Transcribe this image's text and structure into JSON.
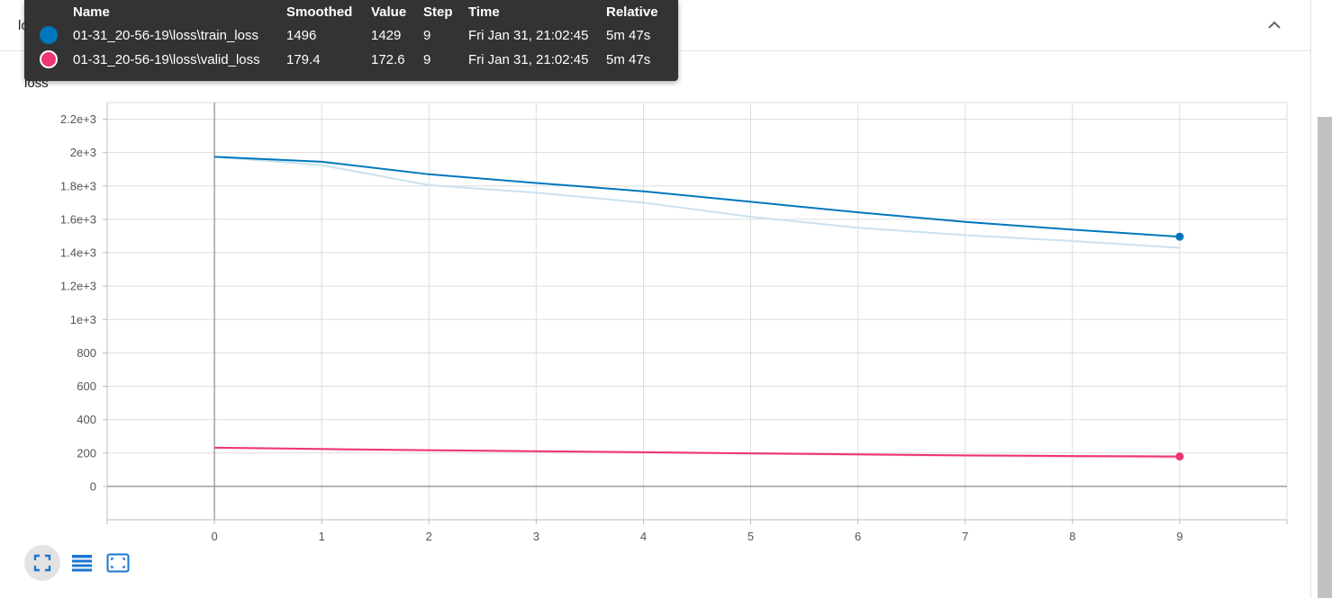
{
  "card": {
    "title": "loss",
    "collapse_icon": "chevron-up-icon"
  },
  "chart_data": {
    "type": "line",
    "title": "loss",
    "xlabel": "",
    "ylabel": "",
    "xlim": [
      -1,
      10
    ],
    "ylim": [
      -200,
      2300
    ],
    "x_ticks": [
      0,
      1,
      2,
      3,
      4,
      5,
      6,
      7,
      8,
      9
    ],
    "y_ticks": [
      {
        "value": 0,
        "label": "0"
      },
      {
        "value": 200,
        "label": "200"
      },
      {
        "value": 400,
        "label": "400"
      },
      {
        "value": 600,
        "label": "600"
      },
      {
        "value": 800,
        "label": "800"
      },
      {
        "value": 1000,
        "label": "1e+3"
      },
      {
        "value": 1200,
        "label": "1.2e+3"
      },
      {
        "value": 1400,
        "label": "1.4e+3"
      },
      {
        "value": 1600,
        "label": "1.6e+3"
      },
      {
        "value": 1800,
        "label": "1.8e+3"
      },
      {
        "value": 2000,
        "label": "2e+3"
      },
      {
        "value": 2200,
        "label": "2.2e+3"
      }
    ],
    "grid": true,
    "x": [
      0,
      1,
      2,
      3,
      4,
      5,
      6,
      7,
      8,
      9
    ],
    "series": [
      {
        "name": "01-31_20-56-19\\loss\\train_loss",
        "color": "#0077bb",
        "raw_color": "#c9e2ef",
        "raw_values": [
          1975,
          1925,
          1805,
          1760,
          1700,
          1615,
          1550,
          1505,
          1470,
          1429
        ],
        "smoothed_values": [
          1975,
          1945,
          1870,
          1818,
          1768,
          1705,
          1642,
          1585,
          1538,
          1496
        ]
      },
      {
        "name": "01-31_20-56-19\\loss\\valid_loss",
        "color": "#ee3377",
        "raw_color": "#f8c9da",
        "raw_values": [
          232,
          222,
          215,
          208,
          202,
          196,
          189,
          183,
          178,
          172.6
        ],
        "smoothed_values": [
          232,
          224,
          217,
          211,
          205,
          198,
          192,
          186,
          182,
          179.4
        ]
      }
    ]
  },
  "tooltip": {
    "headers": {
      "name": "Name",
      "smoothed": "Smoothed",
      "value": "Value",
      "step": "Step",
      "time": "Time",
      "relative": "Relative"
    },
    "rows": [
      {
        "name": "01-31_20-56-19\\loss\\train_loss",
        "smoothed": "1496",
        "value": "1429",
        "step": "9",
        "time": "Fri Jan 31, 21:02:45",
        "relative": "5m 47s",
        "color": "#0077bb"
      },
      {
        "name": "01-31_20-56-19\\loss\\valid_loss",
        "smoothed": "179.4",
        "value": "172.6",
        "step": "9",
        "time": "Fri Jan 31, 21:02:45",
        "relative": "5m 47s",
        "color": "#ee3377"
      }
    ]
  },
  "toolbar": {
    "buttons": [
      {
        "icon": "fullscreen-icon",
        "active": true
      },
      {
        "icon": "data-table-icon",
        "active": false
      },
      {
        "icon": "fit-domain-icon",
        "active": false
      }
    ]
  }
}
